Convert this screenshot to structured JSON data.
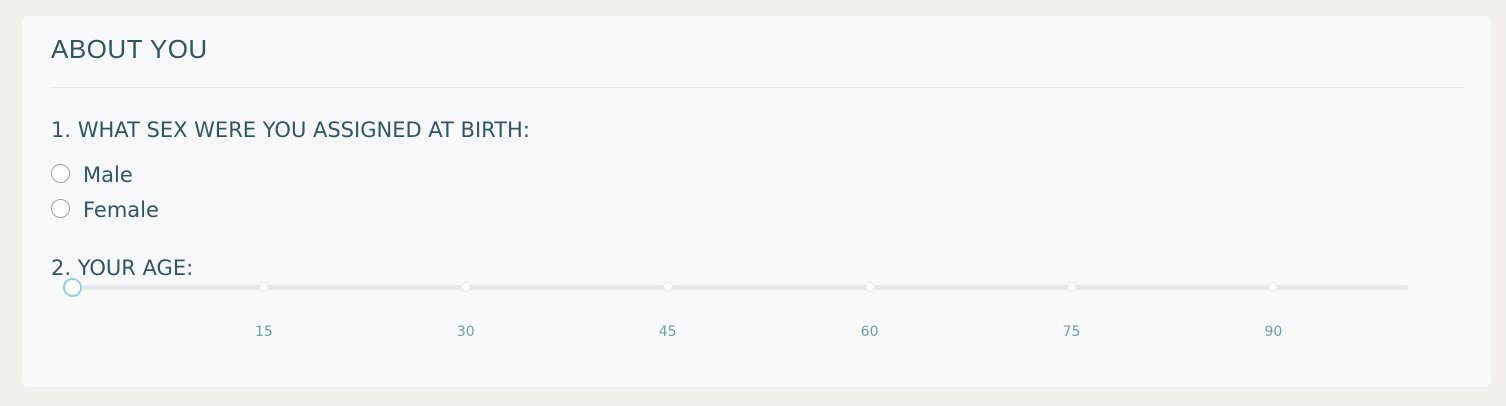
{
  "section": {
    "title": "ABOUT YOU"
  },
  "questions": {
    "sex": {
      "label": "1. WHAT SEX WERE YOU ASSIGNED AT BIRTH:",
      "options": [
        {
          "label": "Male",
          "selected": false
        },
        {
          "label": "Female",
          "selected": false
        }
      ]
    },
    "age": {
      "label": "2. YOUR AGE:",
      "slider": {
        "min": 0,
        "max": 100,
        "value": 0,
        "ticks": [
          "15",
          "30",
          "45",
          "60",
          "75",
          "90"
        ]
      }
    }
  },
  "colors": {
    "page_background": "#f1f0eb",
    "card_background": "#f7f9fb",
    "text": "#2f5663",
    "tick_label": "#6ba2aa",
    "thumb_border": "#8fd3e0",
    "track": "#e6e8ea"
  }
}
